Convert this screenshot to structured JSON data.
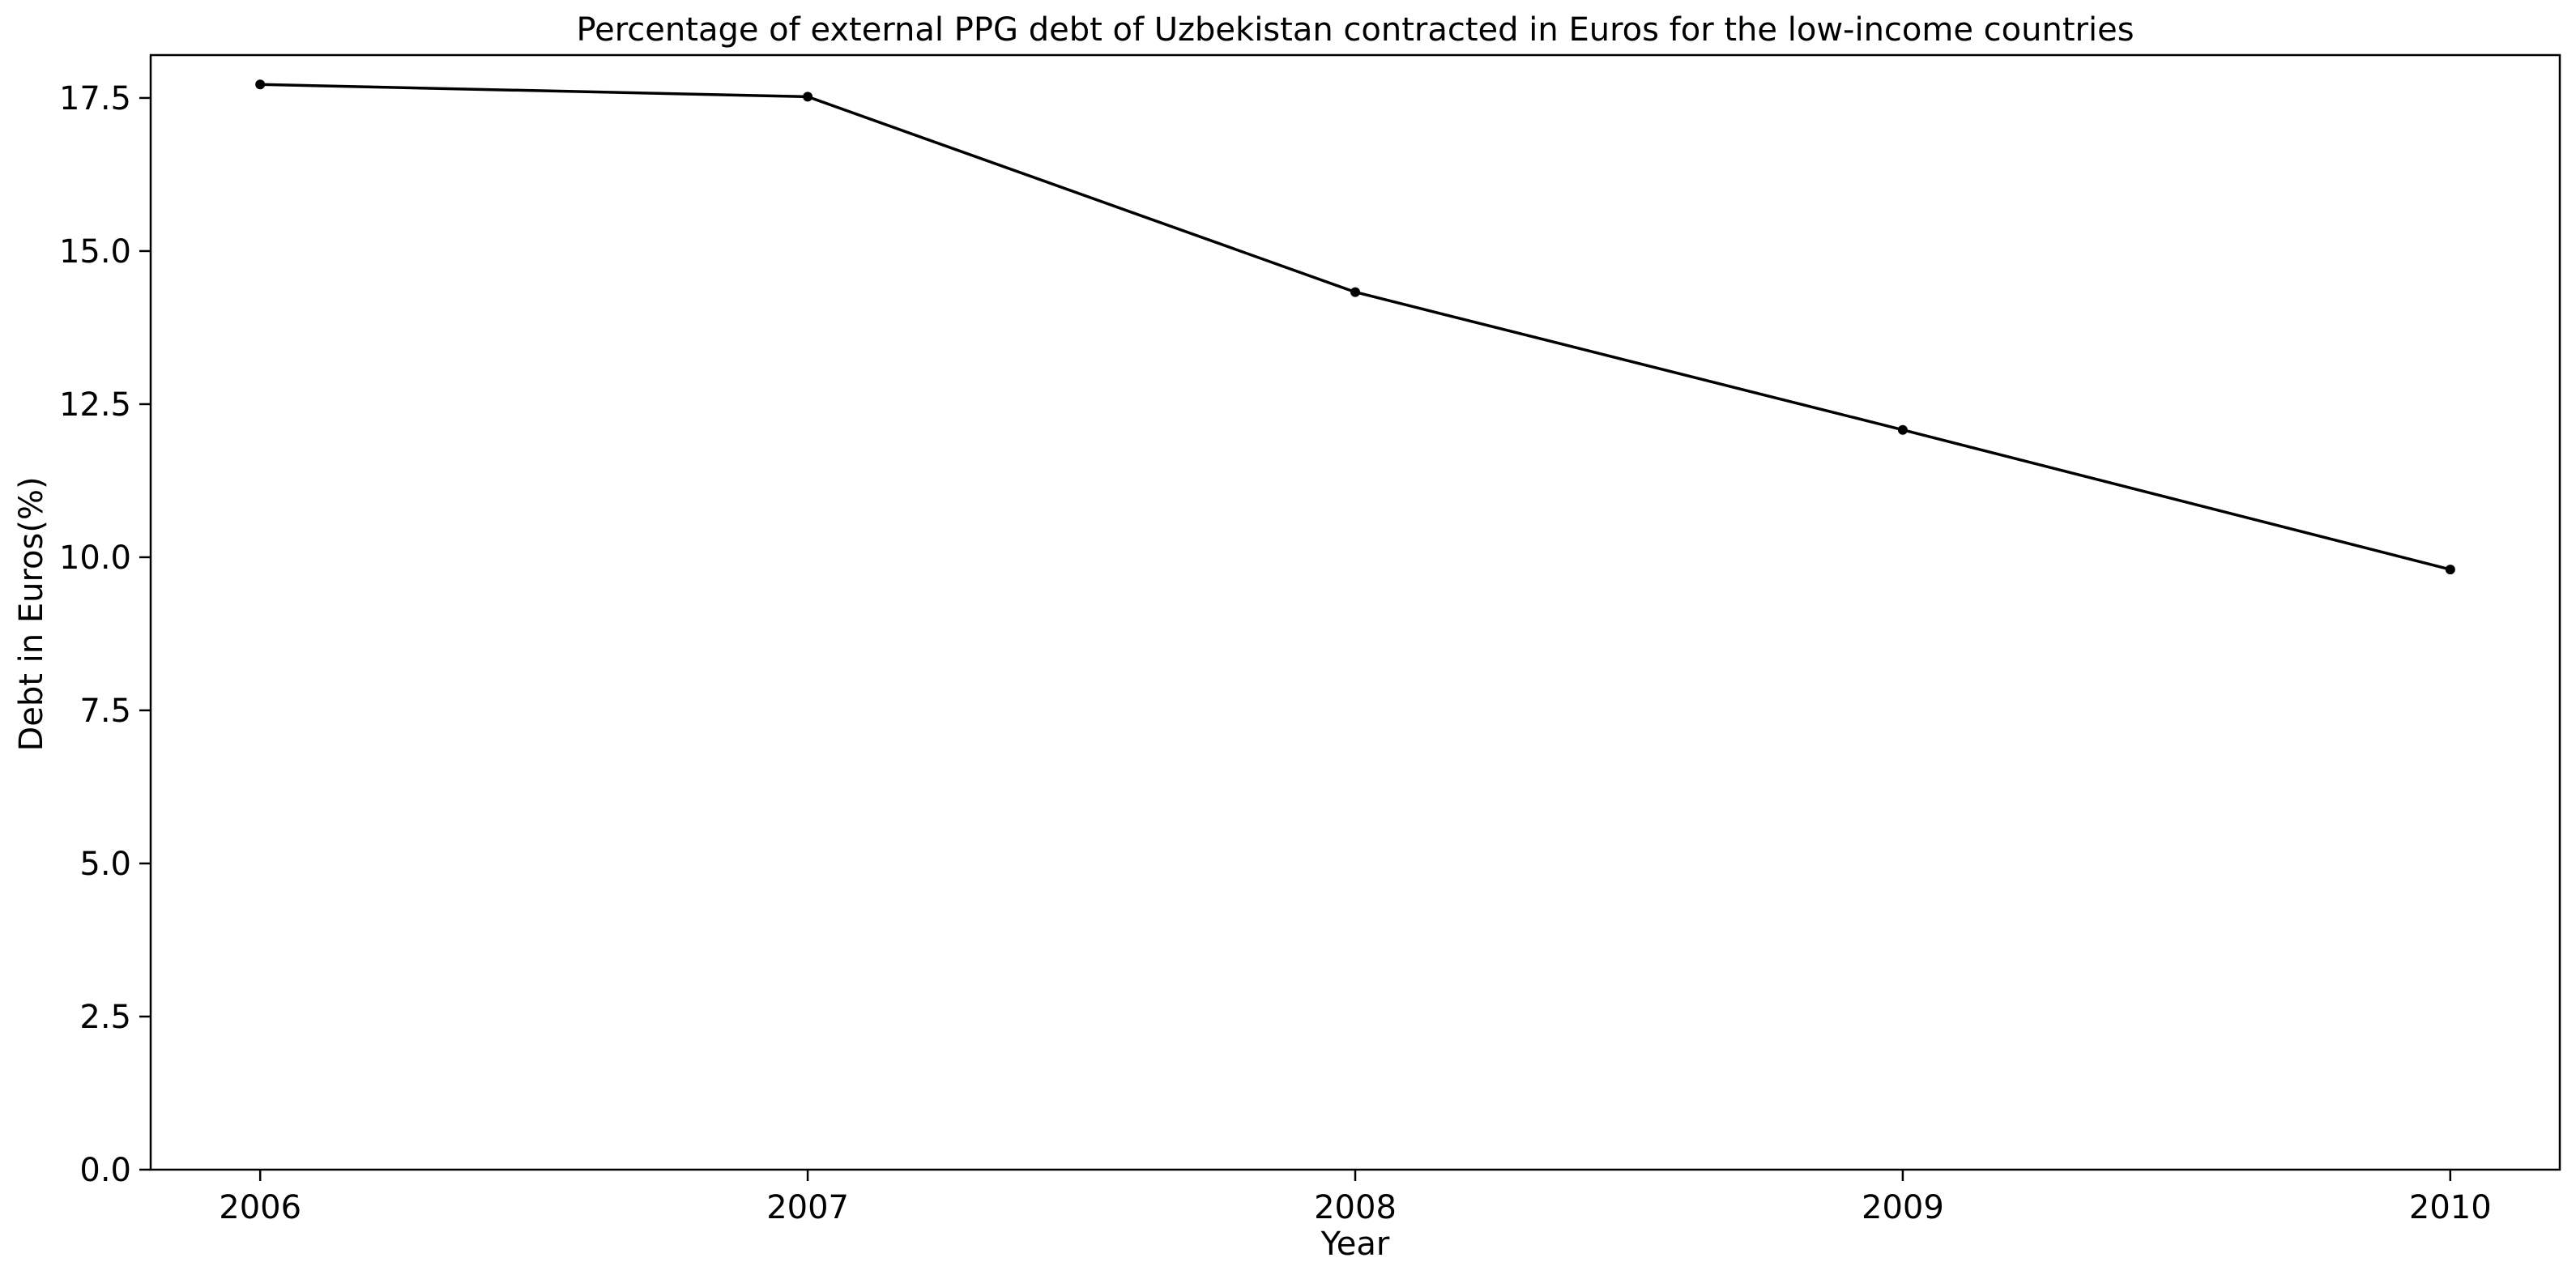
{
  "chart_data": {
    "type": "line",
    "title": "Percentage of external PPG debt of Uzbekistan contracted in Euros for the low-income countries",
    "xlabel": "Year",
    "ylabel": "Debt in Euros(%)",
    "x": [
      "2006",
      "2007",
      "2008",
      "2009",
      "2010"
    ],
    "series": [
      {
        "values": [
          17.72,
          17.52,
          14.33,
          12.08,
          9.8
        ]
      }
    ],
    "xlim": [
      2005.8,
      2010.2
    ],
    "ylim": [
      0,
      18.2
    ],
    "yticks": [
      "0.0",
      "2.5",
      "5.0",
      "7.5",
      "10.0",
      "12.5",
      "15.0",
      "17.5"
    ],
    "grid": false,
    "legend": "none",
    "colors": {
      "line": "#000000",
      "axes": "#000000",
      "background": "#ffffff"
    }
  }
}
